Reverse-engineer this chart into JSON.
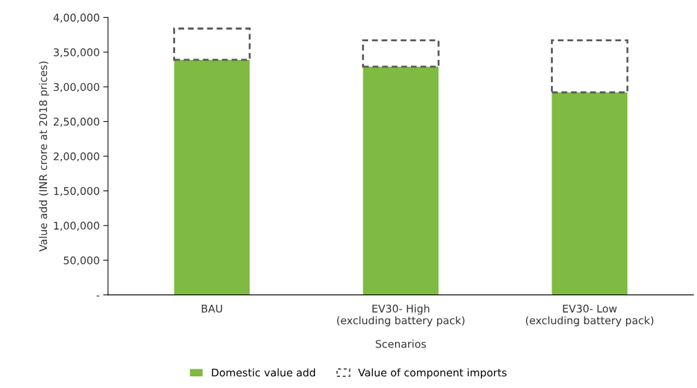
{
  "chart_data": {
    "type": "bar",
    "stacked": true,
    "categories": [
      "BAU",
      "EV30- High\n(excluding battery pack)",
      "EV30- Low\n(excluding battery pack)"
    ],
    "series": [
      {
        "name": "Domestic value add",
        "color": "#7fba42",
        "values": [
          339000,
          329000,
          292000
        ]
      },
      {
        "name": "Value of component imports",
        "color": "#595959",
        "line_style": "dashed",
        "values": [
          45000,
          38000,
          75000
        ]
      }
    ],
    "xlabel": "Scenarios",
    "ylabel": "Value add (INR crore at 2018 prices)",
    "ylim": [
      0,
      400000
    ],
    "yticks": [
      {
        "value": 0,
        "label": "-"
      },
      {
        "value": 50000,
        "label": "50,000"
      },
      {
        "value": 100000,
        "label": "1,00,000"
      },
      {
        "value": 150000,
        "label": "1,50,000"
      },
      {
        "value": 200000,
        "label": "2,00,000"
      },
      {
        "value": 250000,
        "label": "2,50,000"
      },
      {
        "value": 300000,
        "label": "3,00,000"
      },
      {
        "value": 350000,
        "label": "3,50,000"
      },
      {
        "value": 400000,
        "label": "4,00,000"
      }
    ],
    "grid": false,
    "legend": "bottom"
  }
}
